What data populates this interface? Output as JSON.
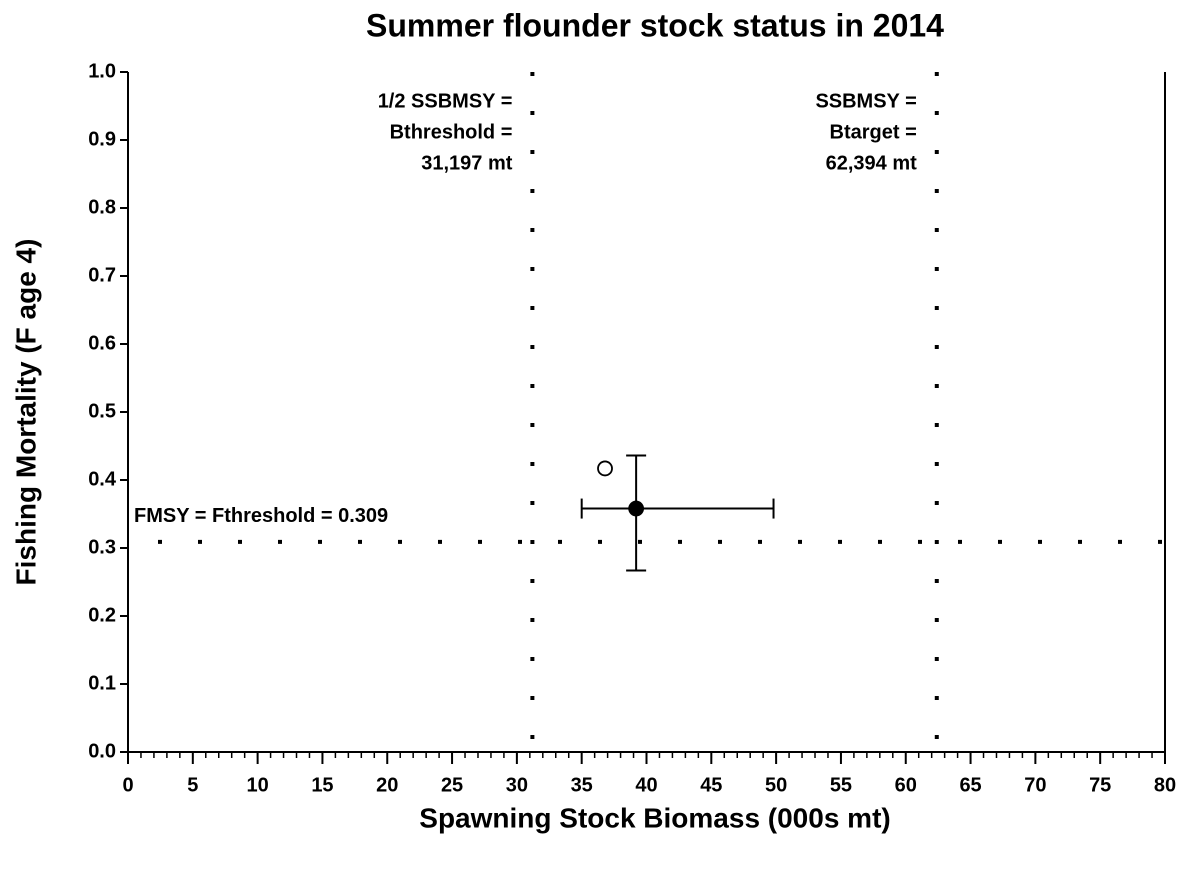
{
  "chart_data": {
    "type": "scatter",
    "title": "Summer flounder stock status in 2014",
    "xlabel": "Spawning Stock Biomass (000s mt)",
    "ylabel": "Fishing Mortality (F age 4)",
    "xlim": [
      0,
      80
    ],
    "ylim": [
      0,
      1
    ],
    "xticks": [
      0,
      5,
      10,
      15,
      20,
      25,
      30,
      35,
      40,
      45,
      50,
      55,
      60,
      65,
      70,
      75,
      80
    ],
    "xminorticks": [
      0,
      1,
      2,
      3,
      4,
      5,
      6,
      7,
      8,
      9,
      10,
      11,
      12,
      13,
      14,
      15,
      16,
      17,
      18,
      19,
      20,
      21,
      22,
      23,
      24,
      25,
      26,
      27,
      28,
      29,
      30,
      31,
      32,
      33,
      34,
      35,
      36,
      37,
      38,
      39,
      40,
      41,
      42,
      43,
      44,
      45,
      46,
      47,
      48,
      49,
      50,
      51,
      52,
      53,
      54,
      55,
      56,
      57,
      58,
      59,
      60,
      61,
      62,
      63,
      64,
      65,
      66,
      67,
      68,
      69,
      70,
      71,
      72,
      73,
      74,
      75,
      76,
      77,
      78,
      79,
      80
    ],
    "yticks": [
      {
        "value": 0,
        "label": "0.0"
      },
      0.1,
      0.2,
      0.3,
      0.4,
      0.5,
      0.6,
      0.7,
      0.8,
      0.9,
      {
        "value": 1,
        "label": "1.0"
      }
    ],
    "series": [
      {
        "color": "#000000",
        "filled": true,
        "x": [
          39.2
        ],
        "values": [
          0.358
        ],
        "xerr": [
          [
            35.0,
            49.8
          ]
        ],
        "yerr": [
          [
            0.267,
            0.436
          ]
        ]
      },
      {
        "color": "#000000",
        "filled": false,
        "x": [
          36.8
        ],
        "values": [
          0.417
        ]
      }
    ],
    "reference_lines": [
      {
        "axis": "x",
        "value": 31.197,
        "label_lines": [
          "1/2 SSBMSY =",
          "Bthreshold =",
          "31,197 mt"
        ]
      },
      {
        "axis": "x",
        "value": 62.394,
        "label_lines": [
          "SSBMSY =",
          "Btarget =",
          "62,394 mt"
        ]
      },
      {
        "axis": "y",
        "value": 0.309,
        "label_lines": [
          "FMSY = Fthreshold = 0.309"
        ]
      }
    ]
  }
}
